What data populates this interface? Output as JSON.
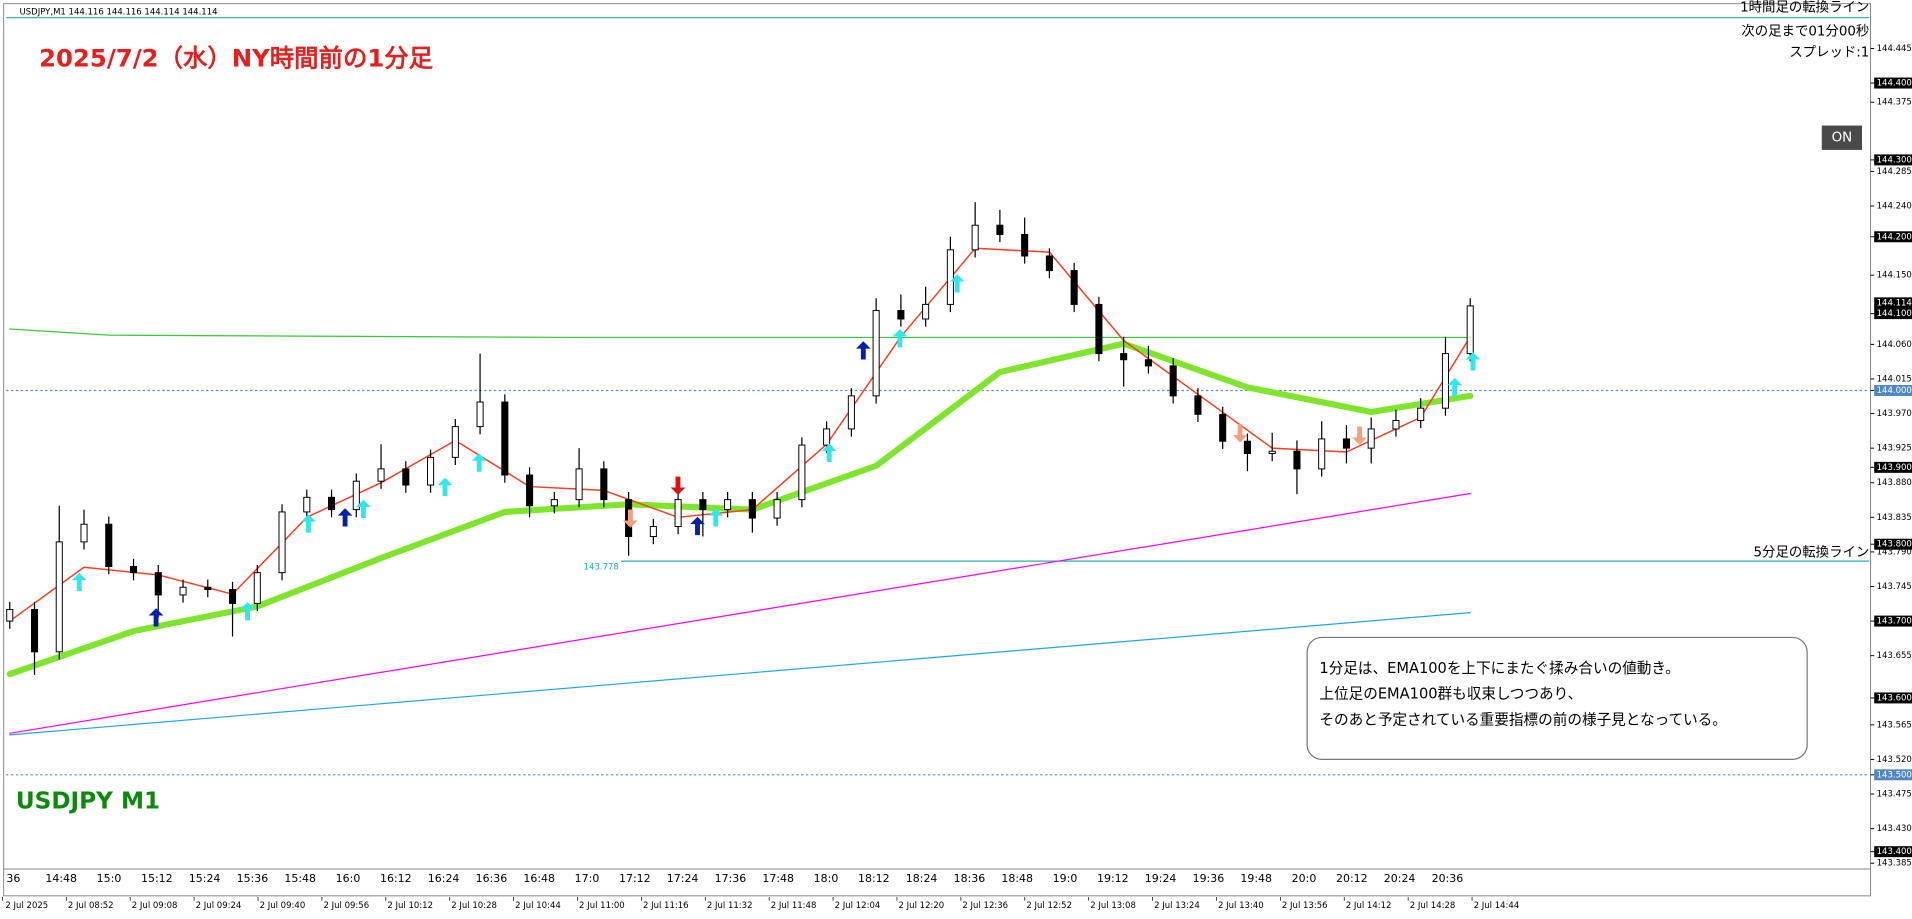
{
  "header": {
    "symbol_bar": "USDJPY,M1  144.116 144.116 144.114 144.114",
    "info_lines": [
      "次の足まで01分00秒",
      "スプレッド:1"
    ]
  },
  "button": "ON",
  "annotation_lines": [
    "1分足は、EMA100を上下にまたぐ揉み合いの値動き。",
    "上位足のEMA100群も収束しつつあり、",
    "そのあと予定されている重要指標の前の様子見となっている。"
  ],
  "chart_data": {
    "type": "candlestick",
    "title": "2025/7/2（水）NY時間前の1分足",
    "subtitle": "USDJPY M1",
    "open": [
      143.7,
      143.715,
      143.66,
      143.803,
      143.826,
      143.771,
      143.763,
      143.734,
      143.744,
      143.741,
      143.723,
      143.763,
      143.842,
      143.861,
      143.845,
      143.882,
      143.898,
      143.877,
      143.913,
      143.953,
      143.985,
      143.89,
      143.85,
      143.858,
      143.898,
      143.858,
      143.81,
      143.823,
      143.858,
      143.845,
      143.858,
      143.834,
      143.858,
      143.929,
      143.95,
      143.993,
      144.104,
      144.093,
      144.112,
      144.183,
      144.215,
      144.203,
      144.175,
      144.156,
      144.112,
      144.048,
      144.04,
      144.032,
      143.993,
      143.969,
      143.934,
      143.918,
      143.921,
      143.898,
      143.937,
      143.925,
      143.95,
      143.961,
      143.977,
      144.048
    ],
    "high": [
      143.725,
      143.725,
      143.85,
      143.845,
      143.836,
      143.781,
      143.773,
      143.754,
      143.754,
      143.751,
      143.773,
      143.852,
      143.871,
      143.871,
      143.892,
      143.93,
      143.908,
      143.923,
      143.963,
      144.048,
      143.995,
      143.9,
      143.868,
      143.925,
      143.908,
      143.868,
      143.833,
      143.88,
      143.868,
      143.868,
      143.868,
      143.868,
      143.939,
      143.96,
      144.003,
      144.12,
      144.125,
      144.135,
      144.2,
      144.245,
      144.235,
      144.225,
      144.185,
      144.166,
      144.122,
      144.07,
      144.058,
      144.042,
      144.003,
      143.979,
      143.944,
      143.945,
      143.935,
      143.96,
      143.955,
      143.965,
      143.975,
      143.99,
      144.07,
      144.12
    ],
    "low": [
      143.69,
      143.63,
      143.65,
      143.793,
      143.761,
      143.753,
      143.705,
      143.724,
      143.731,
      143.68,
      143.713,
      143.753,
      143.832,
      143.835,
      143.835,
      143.872,
      143.867,
      143.867,
      143.903,
      143.943,
      143.88,
      143.835,
      143.84,
      143.848,
      143.848,
      143.785,
      143.8,
      143.813,
      143.81,
      143.835,
      143.815,
      143.824,
      143.848,
      143.919,
      143.94,
      143.983,
      144.083,
      144.083,
      144.102,
      144.173,
      144.193,
      144.165,
      144.146,
      144.102,
      144.038,
      144.005,
      144.022,
      143.983,
      143.959,
      143.924,
      143.895,
      143.908,
      143.865,
      143.888,
      143.905,
      143.905,
      143.94,
      143.951,
      143.967,
      144.038
    ],
    "close": [
      143.715,
      143.66,
      143.803,
      143.826,
      143.771,
      143.763,
      143.734,
      143.744,
      143.741,
      143.723,
      143.763,
      143.842,
      143.861,
      143.845,
      143.882,
      143.898,
      143.877,
      143.913,
      143.953,
      143.985,
      143.89,
      143.85,
      143.858,
      143.898,
      143.858,
      143.81,
      143.823,
      143.858,
      143.845,
      143.858,
      143.834,
      143.858,
      143.929,
      143.95,
      143.993,
      144.104,
      144.093,
      144.112,
      144.183,
      144.215,
      144.203,
      144.175,
      144.156,
      144.112,
      144.048,
      144.04,
      144.032,
      143.993,
      143.969,
      143.934,
      143.918,
      143.921,
      143.898,
      143.937,
      143.925,
      143.95,
      143.961,
      143.977,
      144.048,
      144.11
    ],
    "series": [
      {
        "color": "#ff00ff",
        "width": 1,
        "x": [
          0,
          59
        ],
        "values": [
          143.554,
          143.866
        ]
      },
      {
        "color": "#1ea7e8",
        "width": 1,
        "x": [
          0,
          59
        ],
        "values": [
          143.552,
          143.711
        ]
      },
      {
        "color": "#33cc33",
        "width": 1,
        "x": [
          0,
          4,
          23,
          59
        ],
        "values": [
          144.08,
          144.072,
          144.069,
          144.069
        ]
      },
      {
        "color": "#7fe52b",
        "width": 5,
        "x": [
          0,
          5,
          10,
          15,
          20,
          25,
          30,
          35,
          40,
          45,
          50,
          55,
          59
        ],
        "values": [
          143.631,
          143.687,
          143.719,
          143.782,
          143.842,
          143.852,
          143.845,
          143.902,
          144.024,
          144.061,
          144.004,
          143.972,
          143.993
        ]
      },
      {
        "color": "#ff3b1f",
        "width": 1.2,
        "x": [
          0,
          3,
          6,
          9,
          12,
          15,
          18,
          21,
          24,
          27,
          30,
          33,
          36,
          39,
          42,
          45,
          48,
          51,
          54,
          57,
          59
        ],
        "values": [
          143.7,
          143.77,
          143.76,
          143.735,
          143.835,
          143.88,
          143.935,
          143.875,
          143.87,
          143.835,
          143.845,
          143.93,
          144.07,
          144.185,
          144.18,
          144.065,
          143.995,
          143.925,
          143.92,
          143.965,
          144.07
        ]
      }
    ],
    "hlines": [
      {
        "value": 144.485,
        "color": "#20b2aa",
        "label": "1時間足の転換ライン"
      },
      {
        "value": 144.0,
        "color": "#5b8fd6",
        "style": "dashed"
      },
      {
        "value": 143.5,
        "color": "#5b8fd6",
        "style": "dashed"
      },
      {
        "value": 143.778,
        "color": "#20b2aa",
        "label": "5分足の転換ライン",
        "x_start": 25
      }
    ],
    "price_tag": 144.114,
    "ylim": [
      143.379,
      144.489
    ],
    "yticks": [
      {
        "value": 144.445,
        "label": "144.445"
      },
      {
        "value": 144.4,
        "label": "144.400"
      },
      {
        "value": 144.375,
        "label": "144.375"
      },
      {
        "value": 144.3,
        "label": "144.300"
      },
      {
        "value": 144.285,
        "label": "144.285"
      },
      {
        "value": 144.24,
        "label": "144.240"
      },
      {
        "value": 144.2,
        "label": "144.200"
      },
      {
        "value": 144.15,
        "label": "144.150"
      },
      {
        "value": 144.1,
        "label": "144.100"
      },
      {
        "value": 144.06,
        "label": "144.060"
      },
      {
        "value": 144.015,
        "label": "144.015"
      },
      {
        "value": 144.0,
        "label": "144.000"
      },
      {
        "value": 143.97,
        "label": "143.970"
      },
      {
        "value": 143.925,
        "label": "143.925"
      },
      {
        "value": 143.9,
        "label": "143.900"
      },
      {
        "value": 143.88,
        "label": "143.880"
      },
      {
        "value": 143.835,
        "label": "143.835"
      },
      {
        "value": 143.8,
        "label": "143.800"
      },
      {
        "value": 143.79,
        "label": "143.790"
      },
      {
        "value": 143.745,
        "label": "143.745"
      },
      {
        "value": 143.7,
        "label": "143.700"
      },
      {
        "value": 143.655,
        "label": "143.655"
      },
      {
        "value": 143.6,
        "label": "143.600"
      },
      {
        "value": 143.565,
        "label": "143.565"
      },
      {
        "value": 143.52,
        "label": "143.520"
      },
      {
        "value": 143.5,
        "label": "143.500"
      },
      {
        "value": 143.475,
        "label": "143.475"
      },
      {
        "value": 143.43,
        "label": "143.430"
      },
      {
        "value": 143.4,
        "label": "143.400"
      },
      {
        "value": 143.385,
        "label": "143.385"
      }
    ],
    "x_labels_top": [
      "36",
      "14:48",
      "15:0",
      "15:12",
      "15:24",
      "15:36",
      "15:48",
      "16:0",
      "16:12",
      "16:24",
      "16:36",
      "16:48",
      "17:0",
      "17:12",
      "17:24",
      "17:36",
      "17:48",
      "18:0",
      "18:12",
      "18:24",
      "18:36",
      "18:48",
      "19:0",
      "19:12",
      "19:24",
      "19:36",
      "19:48",
      "20:0",
      "20:12",
      "20:24",
      "20:36"
    ],
    "x_labels_bottom": [
      "2 Jul 2025",
      "2 Jul 08:52",
      "2 Jul 09:08",
      "2 Jul 09:24",
      "2 Jul 09:40",
      "2 Jul 09:56",
      "2 Jul 10:12",
      "2 Jul 10:28",
      "2 Jul 10:44",
      "2 Jul 11:00",
      "2 Jul 11:16",
      "2 Jul 11:32",
      "2 Jul 11:48",
      "2 Jul 12:04",
      "2 Jul 12:20",
      "2 Jul 12:36",
      "2 Jul 12:52",
      "2 Jul 13:08",
      "2 Jul 13:24",
      "2 Jul 13:40",
      "2 Jul 13:56",
      "2 Jul 14:12",
      "2 Jul 14:28",
      "2 Jul 14:44"
    ]
  }
}
